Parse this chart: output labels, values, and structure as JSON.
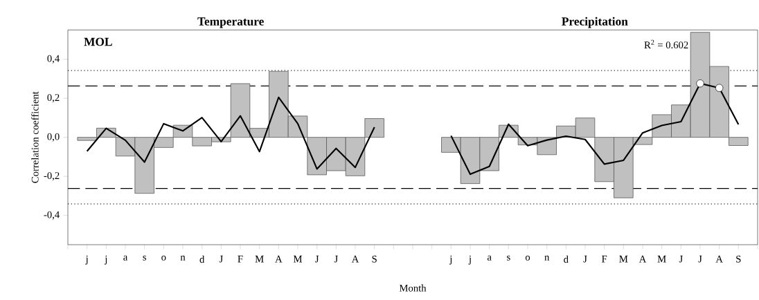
{
  "chart_data": {
    "type": "bar",
    "xlabel": "Month",
    "ylabel": "Correlation coefficient",
    "categories": [
      "j",
      "j",
      "a",
      "s",
      "o",
      "n",
      "d",
      "J",
      "F",
      "M",
      "A",
      "M",
      "J",
      "J",
      "A",
      "S",
      null,
      null,
      null,
      "j",
      "j",
      "a",
      "s",
      "o",
      "n",
      "d",
      "J",
      "F",
      "M",
      "A",
      "M",
      "J",
      "J",
      "A",
      "S"
    ],
    "series": [
      {
        "color": "#c0c0c0",
        "values": [
          -0.016,
          0.047,
          -0.096,
          -0.287,
          -0.052,
          0.062,
          -0.044,
          -0.023,
          0.275,
          0.046,
          0.338,
          0.109,
          -0.192,
          -0.171,
          -0.197,
          0.096,
          null,
          null,
          null,
          -0.077,
          -0.237,
          -0.171,
          0.062,
          -0.039,
          -0.089,
          0.058,
          0.099,
          -0.227,
          -0.31,
          -0.037,
          0.116,
          0.166,
          0.538,
          0.363,
          -0.042
        ]
      },
      {
        "type": "line",
        "color": "#000000",
        "values": [
          -0.071,
          0.046,
          -0.015,
          -0.127,
          0.07,
          0.033,
          0.101,
          -0.022,
          0.11,
          -0.073,
          0.205,
          0.07,
          -0.162,
          -0.057,
          -0.154,
          0.052,
          null,
          null,
          null,
          0.008,
          -0.189,
          -0.149,
          0.067,
          -0.043,
          -0.014,
          0.006,
          -0.011,
          -0.137,
          -0.118,
          0.023,
          0.061,
          0.08,
          0.276,
          0.253,
          0.066
        ]
      },
      {
        "type": "scatter",
        "color": "#ffffff",
        "values": [
          null,
          null,
          null,
          null,
          null,
          null,
          null,
          null,
          null,
          null,
          null,
          null,
          null,
          null,
          null,
          null,
          null,
          null,
          null,
          null,
          null,
          null,
          null,
          null,
          null,
          null,
          null,
          null,
          null,
          null,
          null,
          null,
          0.276,
          0.253,
          null
        ]
      }
    ],
    "ylim": [
      -0.55,
      0.55
    ],
    "yticks": [
      {
        "value": -0.4,
        "label": "-0,4"
      },
      {
        "value": -0.2,
        "label": "-0,2"
      },
      {
        "value": 0,
        "label": "0,0"
      },
      {
        "value": 0.2,
        "label": "0,2"
      },
      {
        "value": 0.4,
        "label": "0,4"
      }
    ],
    "ref_lines": [
      {
        "axis": "y",
        "value": 0.263,
        "line_style": "dashed",
        "color": "#000000"
      },
      {
        "axis": "y",
        "value": -0.262,
        "line_style": "dashed",
        "color": "#000000"
      },
      {
        "axis": "y",
        "value": 0.342,
        "line_style": "dotted",
        "color": "#000000"
      },
      {
        "axis": "y",
        "value": -0.341,
        "line_style": "dotted",
        "color": "#000000"
      }
    ],
    "annotations": [
      "Temperature",
      "Precipitation",
      "MOL",
      "R$^{2}$ = 0.602"
    ]
  }
}
